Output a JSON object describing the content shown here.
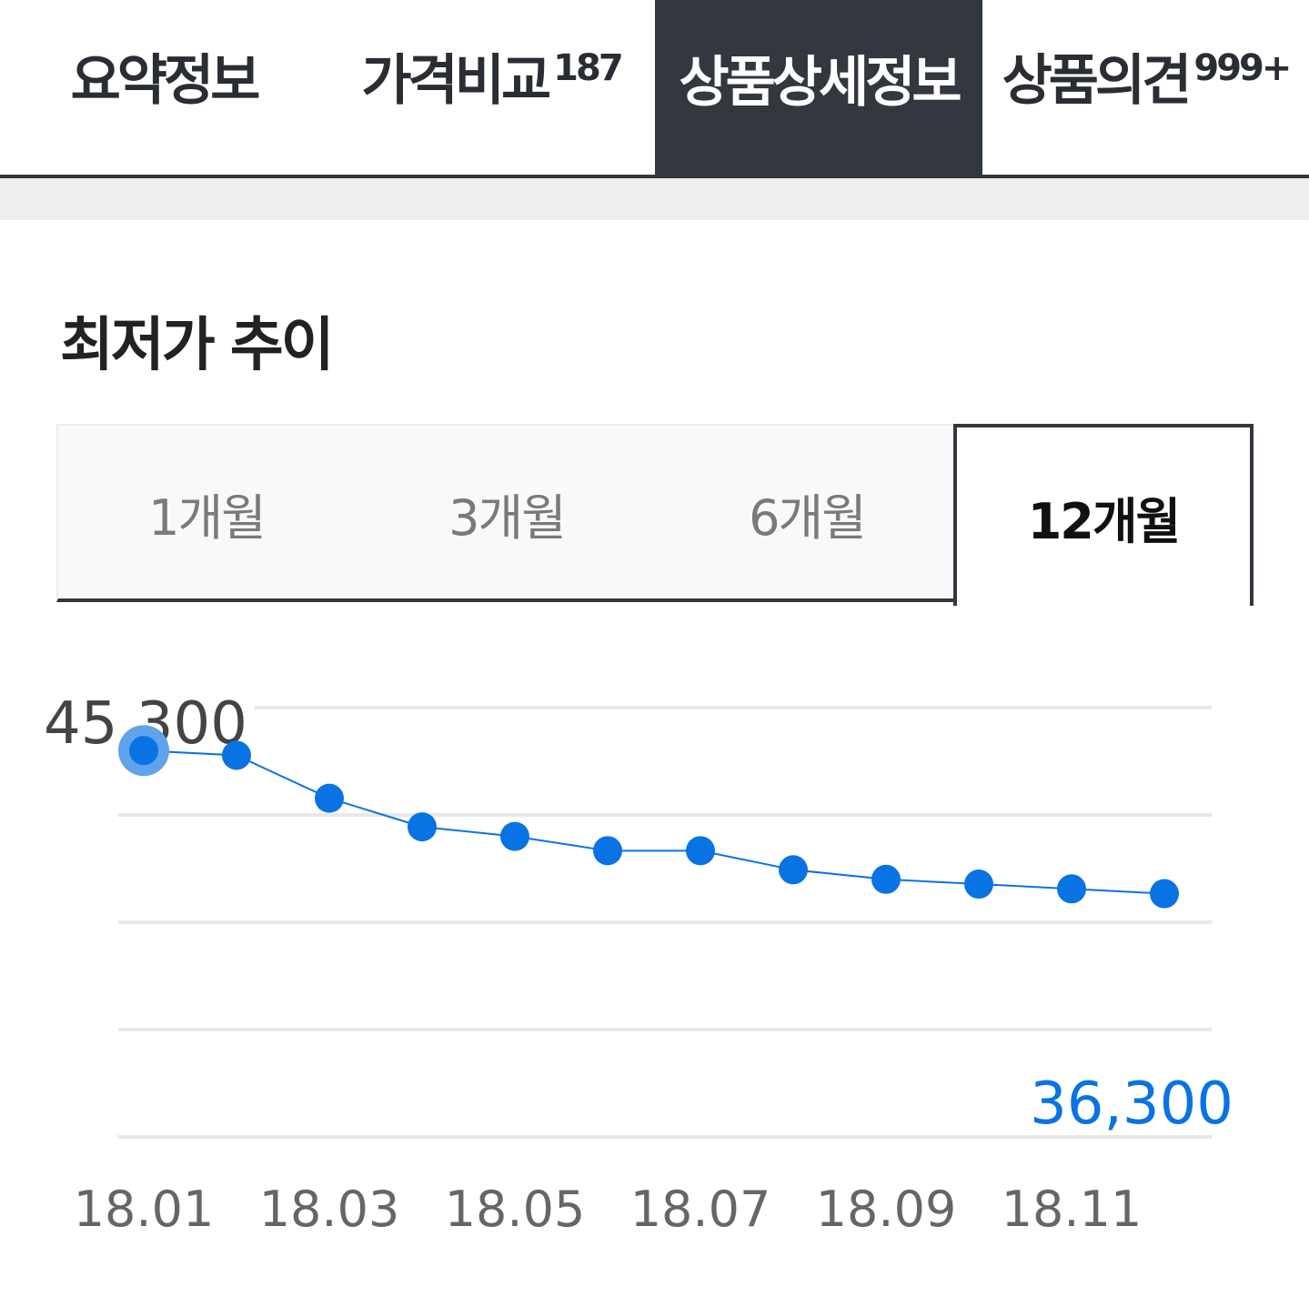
{
  "tabs": [
    {
      "label": "요약정보",
      "count": ""
    },
    {
      "label": "가격비교",
      "count": "187"
    },
    {
      "label": "상품상세정보",
      "count": ""
    },
    {
      "label": "상품의견",
      "count": "999+"
    }
  ],
  "active_tab": 2,
  "section_title": "최저가 추이",
  "periods": [
    "1개월",
    "3개월",
    "6개월",
    "12개월"
  ],
  "active_period": 3,
  "colors": {
    "accent": "#0a73e3",
    "highlight": "#5fa3ec",
    "tab_active_bg": "#323740"
  },
  "chart_data": {
    "type": "line",
    "x": [
      "18.01",
      "18.02",
      "18.03",
      "18.04",
      "18.05",
      "18.06",
      "18.07",
      "18.08",
      "18.09",
      "18.10",
      "18.11",
      "18.12"
    ],
    "tick_labels": [
      "18.01",
      "18.03",
      "18.05",
      "18.07",
      "18.09",
      "18.11"
    ],
    "values": [
      44400,
      44300,
      43400,
      42800,
      42600,
      42300,
      42300,
      41900,
      41700,
      41600,
      41500,
      41400
    ],
    "max_label": "45,300",
    "min_label": "36,300",
    "ylim": [
      36300,
      45300
    ],
    "grid": true,
    "highlight_index": 0
  }
}
